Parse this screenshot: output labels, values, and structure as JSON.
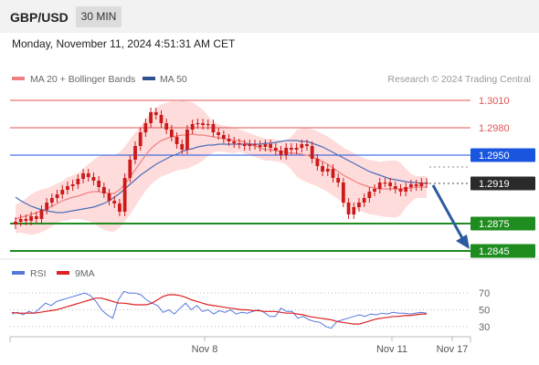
{
  "header": {
    "symbol": "GBP/USD",
    "interval": "30 MIN"
  },
  "datetime": "Monday, November 11, 2024 4:51:31 AM CET",
  "legend": {
    "ma20": "MA 20 + Bollinger Bands",
    "ma50": "MA 50",
    "credit": "Research © 2024 Trading Central"
  },
  "rsi_legend": {
    "rsi": "RSI",
    "ma9": "9MA"
  },
  "colors": {
    "candle": "#cc1a1a",
    "ma20": "#f08080",
    "ma50": "#4a6fb5",
    "band": "#ffd0d0",
    "support": "#1f8c1f",
    "pivot": "#1a55e0",
    "resistance": "#e05555",
    "last": "#2a2a2a",
    "arrow": "#2c5aa0",
    "rsi": "#5577dd",
    "ma9": "#dd2222"
  },
  "chart_data": [
    {
      "type": "candlestick",
      "ylim": [
        1.2835,
        1.302
      ],
      "x_ticks": [
        "Nov 8",
        "Nov 11",
        "Nov 17"
      ],
      "levels": [
        {
          "label": "1.3010",
          "value": 1.301,
          "kind": "resistance"
        },
        {
          "label": "1.2980",
          "value": 1.298,
          "kind": "resistance"
        },
        {
          "label": "1.2950",
          "value": 1.295,
          "kind": "pivot"
        },
        {
          "label": "1.2919",
          "value": 1.2919,
          "kind": "last"
        },
        {
          "label": "1.2875",
          "value": 1.2875,
          "kind": "support"
        },
        {
          "label": "1.2845",
          "value": 1.2845,
          "kind": "support"
        }
      ],
      "close": [
        1.2877,
        1.288,
        1.2878,
        1.2883,
        1.288,
        1.289,
        1.2898,
        1.2903,
        1.2907,
        1.2912,
        1.2916,
        1.2918,
        1.2924,
        1.293,
        1.2926,
        1.2922,
        1.2915,
        1.2908,
        1.29,
        1.2897,
        1.2888,
        1.2925,
        1.2945,
        1.296,
        1.2975,
        1.2985,
        1.2997,
        1.2994,
        1.2985,
        1.2978,
        1.297,
        1.2962,
        1.2956,
        1.2978,
        1.2984,
        1.2985,
        1.2983,
        1.2984,
        1.2975,
        1.2972,
        1.2968,
        1.2965,
        1.2963,
        1.2962,
        1.296,
        1.2962,
        1.2961,
        1.2959,
        1.2962,
        1.2958,
        1.2955,
        1.295,
        1.2958,
        1.2956,
        1.2958,
        1.2962,
        1.296,
        1.2946,
        1.2938,
        1.2932,
        1.2935,
        1.2925,
        1.292,
        1.2898,
        1.2885,
        1.2893,
        1.2898,
        1.2903,
        1.291,
        1.2913,
        1.292,
        1.292,
        1.2916,
        1.2913,
        1.291,
        1.2915,
        1.2918,
        1.2916,
        1.292,
        1.2919
      ],
      "ma20": [
        1.288,
        1.2882,
        1.2883,
        1.2885,
        1.2887,
        1.2889,
        1.2891,
        1.2894,
        1.2897,
        1.29,
        1.2902,
        1.2904,
        1.2905,
        1.2907,
        1.2909,
        1.291,
        1.291,
        1.2909,
        1.2908,
        1.2908,
        1.2912,
        1.2918,
        1.2926,
        1.2934,
        1.2942,
        1.295,
        1.2957,
        1.2962,
        1.2966,
        1.2968,
        1.297,
        1.2971,
        1.2972,
        1.2972,
        1.2973,
        1.2972,
        1.2972,
        1.2971,
        1.297,
        1.2969,
        1.2968,
        1.2967,
        1.2966,
        1.2966,
        1.2964,
        1.2962,
        1.296,
        1.2958,
        1.2956,
        1.2956,
        1.2955,
        1.2954,
        1.2953,
        1.2952,
        1.2952,
        1.2951,
        1.295,
        1.2948,
        1.2946,
        1.2943,
        1.294,
        1.2936,
        1.2932,
        1.2928,
        1.2925,
        1.2922,
        1.2919,
        1.2917,
        1.2915,
        1.2914,
        1.2913,
        1.2913,
        1.2913,
        1.2913,
        1.2913,
        1.2914,
        1.2914,
        1.2915,
        1.2915,
        1.2915
      ],
      "ma50": [
        1.2904,
        1.29,
        1.2897,
        1.2894,
        1.2892,
        1.289,
        1.2889,
        1.2888,
        1.2887,
        1.2887,
        1.2888,
        1.2889,
        1.289,
        1.2891,
        1.2892,
        1.2893,
        1.2895,
        1.2897,
        1.29,
        1.2904,
        1.2908,
        1.2913,
        1.2918,
        1.2923,
        1.2928,
        1.2932,
        1.2936,
        1.294,
        1.2943,
        1.2946,
        1.2949,
        1.2951,
        1.2954,
        1.2956,
        1.2957,
        1.2959,
        1.296,
        1.2961,
        1.2961,
        1.2962,
        1.2962,
        1.2962,
        1.2962,
        1.2962,
        1.2962,
        1.2962,
        1.2962,
        1.2962,
        1.2963,
        1.2963,
        1.2964,
        1.2965,
        1.2966,
        1.2966,
        1.2966,
        1.2965,
        1.2965,
        1.2963,
        1.2961,
        1.2959,
        1.2956,
        1.2953,
        1.295,
        1.2947,
        1.2944,
        1.2941,
        1.2938,
        1.2935,
        1.2932,
        1.293,
        1.2928,
        1.2926,
        1.2924,
        1.2923,
        1.2922,
        1.2921,
        1.292,
        1.292,
        1.2919,
        1.2919
      ]
    },
    {
      "type": "line",
      "name": "RSI",
      "ylim": [
        20,
        80
      ],
      "y_ticks": [
        "70",
        "50",
        "30"
      ],
      "series": [
        {
          "name": "RSI",
          "values": [
            45,
            47,
            44,
            48,
            46,
            52,
            58,
            55,
            60,
            62,
            64,
            66,
            68,
            70,
            67,
            60,
            50,
            44,
            40,
            62,
            72,
            70,
            70,
            68,
            62,
            58,
            55,
            47,
            50,
            45,
            52,
            58,
            50,
            55,
            48,
            50,
            45,
            49,
            47,
            50,
            45,
            47,
            46,
            48,
            50,
            47,
            42,
            42,
            52,
            48,
            48,
            40,
            42,
            38,
            36,
            35,
            30,
            28,
            36,
            38,
            40,
            42,
            44,
            42,
            45,
            44,
            46,
            45,
            47,
            46,
            46,
            45,
            46,
            47,
            46
          ]
        },
        {
          "name": "9MA",
          "values": [
            47,
            46,
            46,
            46,
            46,
            47,
            48,
            49,
            50,
            52,
            54,
            56,
            58,
            60,
            62,
            64,
            64,
            62,
            60,
            58,
            58,
            57,
            56,
            56,
            56,
            58,
            62,
            66,
            68,
            68,
            67,
            65,
            62,
            60,
            58,
            56,
            55,
            54,
            53,
            52,
            51,
            50,
            50,
            49,
            49,
            48,
            48,
            48,
            47,
            46,
            46,
            45,
            44,
            42,
            41,
            40,
            39,
            38,
            36,
            35,
            34,
            33,
            33,
            35,
            37,
            39,
            40,
            41,
            42,
            42,
            43,
            43,
            44,
            45,
            45
          ]
        }
      ]
    }
  ]
}
